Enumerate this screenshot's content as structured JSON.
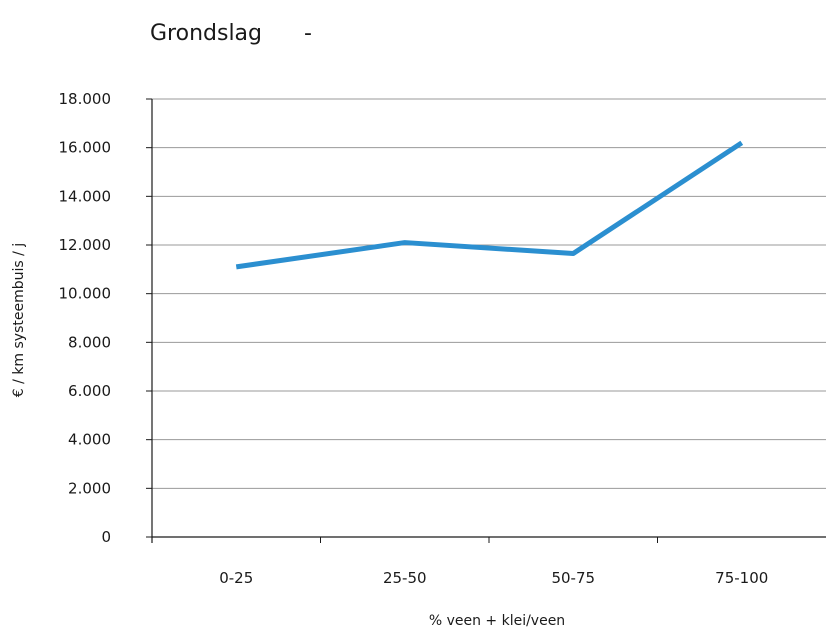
{
  "chart_data": {
    "type": "line",
    "title": "Grondslag      -",
    "xlabel": "% veen + klei/veen",
    "ylabel": "€ / km systeembuis / j",
    "categories": [
      "0-25",
      "25-50",
      "50-75",
      "75-100"
    ],
    "series": [
      {
        "values": [
          11100,
          12100,
          11650,
          16200
        ]
      }
    ],
    "ylim": [
      0,
      18000
    ],
    "yticks": [
      0,
      2000,
      4000,
      6000,
      8000,
      10000,
      12000,
      14000,
      16000,
      18000
    ],
    "ytick_labels": [
      "0",
      "2.000",
      "4.000",
      "6.000",
      "8.000",
      "10.000",
      "12.000",
      "14.000",
      "16.000",
      "18.000"
    ],
    "grid": true,
    "line_color": "#2b8fd0",
    "grid_color": "#999999"
  }
}
